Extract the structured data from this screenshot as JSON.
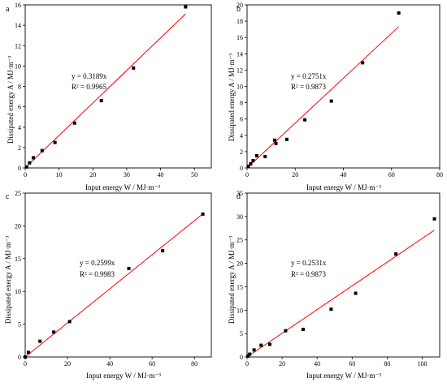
{
  "colors": {
    "fit_line": "#ff0000",
    "points": "#000000",
    "axes": "#000000",
    "background": "#ffffff"
  },
  "chart_data": [
    {
      "type": "scatter",
      "panel": "a",
      "xlabel": "Input energy W / MJ·m⁻³",
      "ylabel": "Dissipated energy A / MJ·m⁻³",
      "xlim": [
        0,
        55
      ],
      "ylim": [
        0,
        16
      ],
      "xticks": [
        0,
        10,
        20,
        30,
        40,
        50
      ],
      "yticks": [
        0,
        2,
        4,
        6,
        8,
        10,
        12,
        14,
        16
      ],
      "equation": "y = 0.3189x",
      "r2": "R² = 0.9965",
      "slope": 0.3189,
      "fit_x_range": [
        0,
        47.4
      ],
      "x": [
        0.4,
        1.3,
        2.4,
        5.0,
        8.8,
        14.6,
        22.5,
        32.0,
        47.4
      ],
      "y": [
        0.1,
        0.5,
        1.0,
        1.7,
        2.5,
        4.4,
        6.6,
        9.8,
        15.8
      ]
    },
    {
      "type": "scatter",
      "panel": "b",
      "xlabel": "Input energy W / MJ·m⁻³",
      "ylabel": "Dissipated energy A / MJ·m⁻³",
      "xlim": [
        0,
        80
      ],
      "ylim": [
        0,
        20
      ],
      "xticks": [
        0,
        20,
        40,
        60,
        80
      ],
      "yticks": [
        0,
        2,
        4,
        6,
        8,
        10,
        12,
        14,
        16,
        18,
        20
      ],
      "equation": "y = 0.2751x",
      "r2": "R² = 0.9873",
      "slope": 0.2751,
      "fit_x_range": [
        0,
        63
      ],
      "x": [
        0.5,
        1.5,
        2.5,
        4.0,
        7.5,
        11.5,
        12.0,
        16.5,
        24.0,
        35.0,
        48.0,
        63.0
      ],
      "y": [
        0.2,
        0.5,
        0.9,
        1.5,
        1.4,
        3.4,
        3.0,
        3.5,
        5.9,
        8.2,
        12.9,
        19.0
      ]
    },
    {
      "type": "scatter",
      "panel": "c",
      "xlabel": "Input energy W / MJ·m⁻³",
      "ylabel": "Dissipated energy A / MJ·m⁻³",
      "xlim": [
        0,
        88
      ],
      "ylim": [
        0,
        25
      ],
      "xticks": [
        0,
        20,
        40,
        60,
        80
      ],
      "yticks": [
        0,
        5,
        10,
        15,
        20,
        25
      ],
      "equation": "y = 0.2599x",
      "r2": "R² = 0.9983",
      "slope": 0.2599,
      "fit_x_range": [
        0,
        84
      ],
      "x": [
        0,
        1.5,
        7.0,
        13.5,
        21.0,
        49.0,
        65.0,
        84.0
      ],
      "y": [
        0,
        0.7,
        2.4,
        3.8,
        5.4,
        13.5,
        16.2,
        21.8
      ]
    },
    {
      "type": "scatter",
      "panel": "d",
      "xlabel": "Input energy W / MJ·m⁻³",
      "ylabel": "Dissipated energy A / MJ·m⁻³",
      "xlim": [
        0,
        110
      ],
      "ylim": [
        0,
        35
      ],
      "xticks": [
        0,
        20,
        40,
        60,
        80,
        100
      ],
      "yticks": [
        0,
        5,
        10,
        15,
        20,
        25,
        30,
        35
      ],
      "equation": "y = 0.2531x",
      "r2": "R² = 0.9873",
      "slope": 0.2531,
      "fit_x_range": [
        0,
        107
      ],
      "x": [
        0.5,
        1.5,
        4.0,
        8.0,
        13.0,
        22.0,
        32.0,
        48.0,
        62.0,
        85.0,
        107.0
      ],
      "y": [
        0.2,
        0.6,
        1.5,
        2.5,
        2.7,
        5.6,
        5.9,
        10.2,
        13.6,
        22.0,
        29.5
      ]
    }
  ]
}
